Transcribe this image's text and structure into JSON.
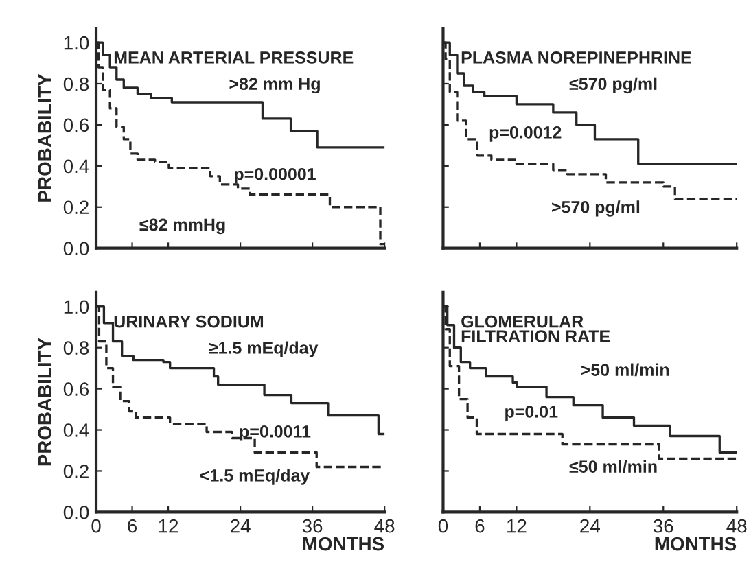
{
  "chart_data": [
    {
      "type": "step",
      "title": "MEAN ARTERIAL PRESSURE",
      "ylabel": "PROBABILITY",
      "xlim": [
        0,
        48
      ],
      "ylim": [
        0,
        1.07
      ],
      "xticks": [
        0,
        6,
        12,
        24,
        36,
        48
      ],
      "yticks": [
        {
          "value": 0,
          "label": "0.0"
        },
        {
          "value": 0.2,
          "label": "0.2"
        },
        {
          "value": 0.4,
          "label": "0.4"
        },
        {
          "value": 0.6,
          "label": "0.6"
        },
        {
          "value": 0.8,
          "label": "0.8"
        },
        {
          "value": 1,
          "label": "1.0"
        }
      ],
      "tick_labels": "y",
      "grid": false,
      "legend": false,
      "annotations": [
        "p=0.00001"
      ],
      "series": [
        {
          "name": ">82 mm Hg",
          "color": "#262626",
          "line_style": "solid",
          "x": [
            0,
            1.1,
            2.3,
            3.4,
            4.6,
            6.9,
            9.1,
            12.6,
            27.7,
            32.4,
            36.8,
            48
          ],
          "values": [
            1.0,
            0.94,
            0.88,
            0.82,
            0.78,
            0.75,
            0.73,
            0.71,
            0.63,
            0.57,
            0.49,
            0.49
          ]
        },
        {
          "name": "≤82 mmHg",
          "color": "#262626",
          "line_style": "dashed",
          "x": [
            0,
            0.4,
            1.1,
            2.3,
            3.4,
            4.6,
            5.7,
            6.9,
            9.8,
            12.1,
            19,
            20.6,
            23.6,
            25.6,
            38.9,
            47.3,
            48
          ],
          "values": [
            1.0,
            0.88,
            0.77,
            0.68,
            0.59,
            0.53,
            0.46,
            0.43,
            0.42,
            0.39,
            0.35,
            0.31,
            0.29,
            0.26,
            0.2,
            0.02,
            0.02
          ]
        }
      ]
    },
    {
      "type": "step",
      "title": "PLASMA NOREPINEPHRINE",
      "xlim": [
        0,
        48
      ],
      "ylim": [
        0,
        1.07
      ],
      "xticks": [
        0,
        6,
        12,
        24,
        36,
        48
      ],
      "yticks": [
        0,
        0.2,
        0.4,
        0.6,
        0.8,
        1
      ],
      "tick_labels": false,
      "grid": false,
      "legend": false,
      "annotations": [
        "p=0.0012"
      ],
      "series": [
        {
          "name": "≤570 pg/ml",
          "color": "#262626",
          "line_style": "solid",
          "x": [
            0,
            1.1,
            2.3,
            3.4,
            4.9,
            6.75,
            12,
            18,
            21.8,
            24.8,
            31.9,
            48
          ],
          "values": [
            1.0,
            0.94,
            0.85,
            0.79,
            0.76,
            0.74,
            0.7,
            0.66,
            0.6,
            0.53,
            0.41,
            0.41
          ]
        },
        {
          "name": ">570 pg/ml",
          "color": "#262626",
          "line_style": "dashed",
          "x": [
            0,
            0.4,
            1.1,
            2.3,
            3.75,
            5.6,
            7.9,
            12,
            18,
            20.3,
            26.6,
            36,
            37.9,
            48
          ],
          "values": [
            1.0,
            0.92,
            0.76,
            0.62,
            0.53,
            0.45,
            0.43,
            0.41,
            0.38,
            0.36,
            0.32,
            0.3,
            0.24,
            0.24
          ]
        }
      ]
    },
    {
      "type": "step",
      "title": "URINARY SODIUM",
      "ylabel": "PROBABILITY",
      "xlabel": "MONTHS",
      "xlim": [
        0,
        48
      ],
      "ylim": [
        0,
        1.07
      ],
      "xticks": [
        0,
        6,
        12,
        24,
        36,
        48
      ],
      "yticks": [
        {
          "value": 0,
          "label": "0.0"
        },
        {
          "value": 0.2,
          "label": "0.2"
        },
        {
          "value": 0.4,
          "label": "0.4"
        },
        {
          "value": 0.6,
          "label": "0.6"
        },
        {
          "value": 0.8,
          "label": "0.8"
        },
        {
          "value": 1,
          "label": "1.0"
        }
      ],
      "grid": false,
      "legend": false,
      "annotations": [
        "p=0.0011"
      ],
      "series": [
        {
          "name": "≥1.5 mEq/day",
          "color": "#262626",
          "line_style": "solid",
          "x": [
            0,
            1.3,
            2.8,
            4.3,
            6.2,
            11.2,
            12.3,
            18.4,
            19.6,
            20.3,
            27.6,
            28,
            32.5,
            38.6,
            47,
            48
          ],
          "values": [
            1.0,
            0.92,
            0.83,
            0.76,
            0.74,
            0.73,
            0.7,
            0.7,
            0.66,
            0.62,
            0.62,
            0.57,
            0.53,
            0.47,
            0.38,
            0.38
          ]
        },
        {
          "name": "<1.5 mEq/day",
          "color": "#262626",
          "line_style": "dashed",
          "x": [
            0,
            0.5,
            1.7,
            2.8,
            4,
            5.5,
            6.6,
            12.3,
            18.4,
            22.6,
            26.4,
            36.7,
            48
          ],
          "values": [
            1.0,
            0.83,
            0.7,
            0.61,
            0.54,
            0.49,
            0.46,
            0.43,
            0.39,
            0.36,
            0.29,
            0.22,
            0.22
          ]
        }
      ]
    },
    {
      "type": "step",
      "title": "GLOMERULAR\nFILTRATION RATE",
      "xlabel": "MONTHS",
      "xlim": [
        0,
        48
      ],
      "ylim": [
        0,
        1.07
      ],
      "xticks": [
        0,
        6,
        12,
        24,
        36,
        48
      ],
      "yticks": [
        0,
        0.2,
        0.4,
        0.6,
        0.8,
        1
      ],
      "tick_labels": "x",
      "grid": false,
      "legend": false,
      "annotations": [
        "p=0.01"
      ],
      "series": [
        {
          "name": ">50 ml/min",
          "color": "#262626",
          "line_style": "solid",
          "x": [
            0,
            0.7,
            1.8,
            2.9,
            4.4,
            7,
            11.4,
            12.1,
            16.9,
            21.3,
            26.1,
            31.2,
            37.1,
            45.2,
            48
          ],
          "values": [
            1.0,
            0.91,
            0.8,
            0.73,
            0.7,
            0.66,
            0.63,
            0.61,
            0.56,
            0.52,
            0.46,
            0.42,
            0.37,
            0.29,
            0.29
          ]
        },
        {
          "name": "≤50 ml/min",
          "color": "#262626",
          "line_style": "dashed",
          "x": [
            0,
            0.4,
            1.1,
            2.6,
            4,
            5.5,
            19.5,
            35.3,
            48
          ],
          "values": [
            1.0,
            0.89,
            0.71,
            0.55,
            0.46,
            0.38,
            0.33,
            0.26,
            0.26
          ]
        }
      ]
    }
  ]
}
